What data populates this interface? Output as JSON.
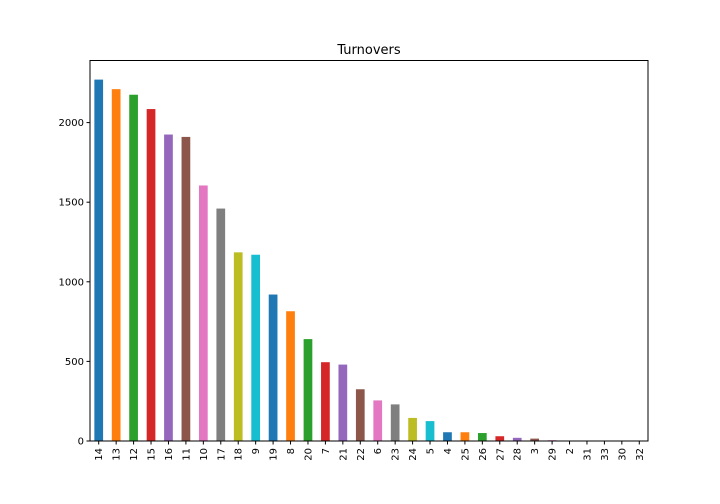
{
  "chart_data": {
    "type": "bar",
    "title": "Turnovers",
    "xlabel": "",
    "ylabel": "",
    "categories": [
      "14",
      "13",
      "12",
      "15",
      "16",
      "11",
      "10",
      "17",
      "18",
      "9",
      "19",
      "8",
      "20",
      "7",
      "21",
      "22",
      "6",
      "23",
      "24",
      "5",
      "4",
      "25",
      "26",
      "27",
      "28",
      "3",
      "29",
      "2",
      "31",
      "33",
      "30",
      "32"
    ],
    "values": [
      2270,
      2210,
      2175,
      2085,
      1925,
      1910,
      1605,
      1460,
      1185,
      1170,
      920,
      815,
      640,
      495,
      480,
      325,
      255,
      230,
      145,
      125,
      55,
      55,
      50,
      30,
      20,
      15,
      5,
      0,
      0,
      0,
      0,
      0
    ],
    "ylim": [
      0,
      2390
    ],
    "yticks": [
      0,
      500,
      1000,
      1500,
      2000
    ],
    "grid": false,
    "legend": "none",
    "colors": [
      "#1f77b4",
      "#ff7f0e",
      "#2ca02c",
      "#d62728",
      "#9467bd",
      "#8c564b",
      "#e377c2",
      "#7f7f7f",
      "#bcbd22",
      "#17becf"
    ]
  }
}
